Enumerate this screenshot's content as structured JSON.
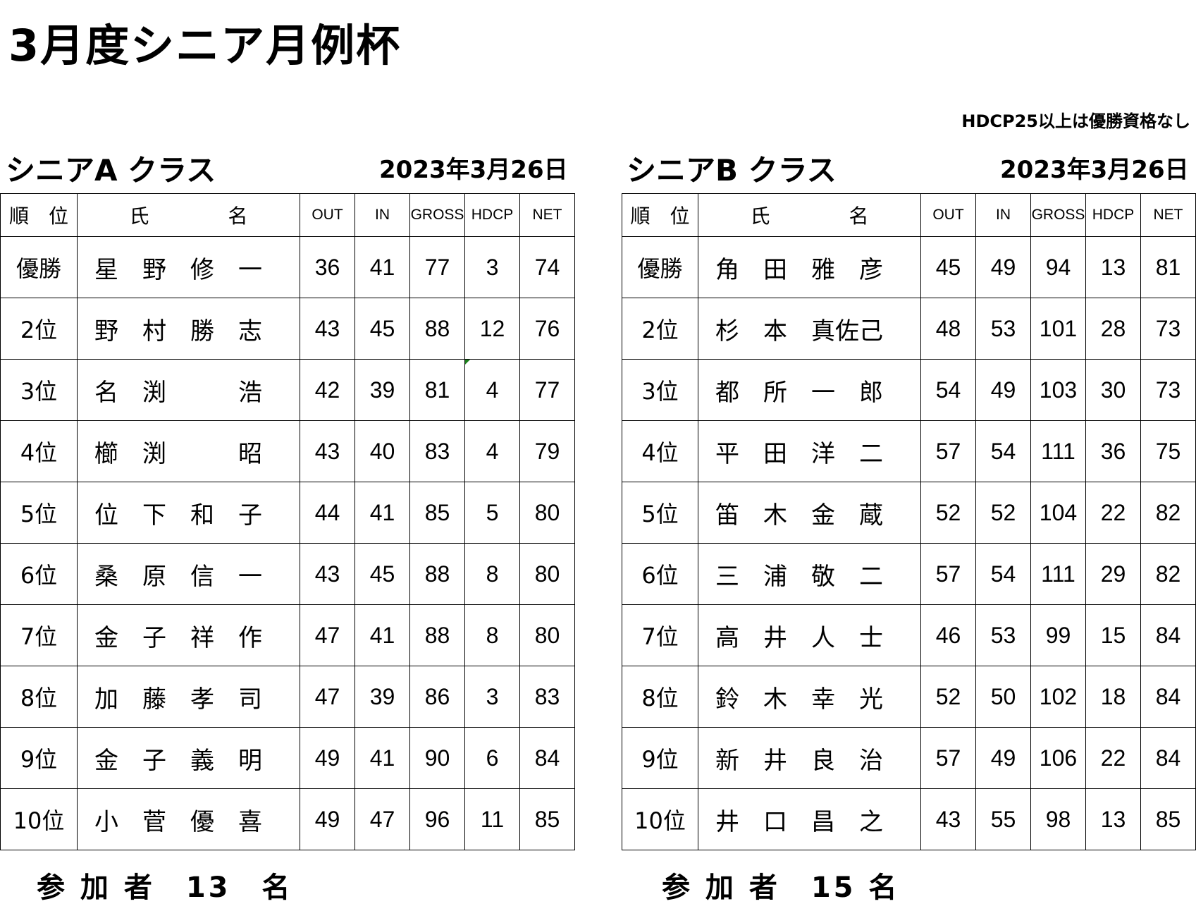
{
  "title": "3月度シニア月例杯",
  "note": "HDCP25以上は優勝資格なし",
  "headers": {
    "rank": "順　位",
    "name": "氏　　　　名",
    "out": "OUT",
    "in": "IN",
    "gross": "GROSS",
    "hdcp": "HDCP",
    "net": "NET"
  },
  "classA": {
    "title": "シニアA クラス",
    "date": "2023年3月26日",
    "participants": "参 加 者　13　名",
    "rows": [
      {
        "rank": "優勝",
        "name": "星　野　修　一",
        "out": "36",
        "in": "41",
        "gross": "77",
        "hdcp": "3",
        "net": "74"
      },
      {
        "rank": "2位",
        "name": "野　村　勝　志",
        "out": "43",
        "in": "45",
        "gross": "88",
        "hdcp": "12",
        "net": "76"
      },
      {
        "rank": "3位",
        "name": "名　渕　　　浩",
        "out": "42",
        "in": "39",
        "gross": "81",
        "hdcp": "4",
        "net": "77"
      },
      {
        "rank": "4位",
        "name": "櫛　渕　　　昭",
        "out": "43",
        "in": "40",
        "gross": "83",
        "hdcp": "4",
        "net": "79"
      },
      {
        "rank": "5位",
        "name": "位　下　和　子",
        "out": "44",
        "in": "41",
        "gross": "85",
        "hdcp": "5",
        "net": "80"
      },
      {
        "rank": "6位",
        "name": "桑　原　信　一",
        "out": "43",
        "in": "45",
        "gross": "88",
        "hdcp": "8",
        "net": "80"
      },
      {
        "rank": "7位",
        "name": "金　子　祥　作",
        "out": "47",
        "in": "41",
        "gross": "88",
        "hdcp": "8",
        "net": "80"
      },
      {
        "rank": "8位",
        "name": "加　藤　孝　司",
        "out": "47",
        "in": "39",
        "gross": "86",
        "hdcp": "3",
        "net": "83"
      },
      {
        "rank": "9位",
        "name": "金　子　義　明",
        "out": "49",
        "in": "41",
        "gross": "90",
        "hdcp": "6",
        "net": "84"
      },
      {
        "rank": "10位",
        "name": "小　菅　優　喜",
        "out": "49",
        "in": "47",
        "gross": "96",
        "hdcp": "11",
        "net": "85"
      }
    ]
  },
  "classB": {
    "title": "シニアB クラス",
    "date": "2023年3月26日",
    "participants": "参 加 者　15 名",
    "rows": [
      {
        "rank": "優勝",
        "name": "角　田　雅　彦",
        "out": "45",
        "in": "49",
        "gross": "94",
        "hdcp": "13",
        "net": "81"
      },
      {
        "rank": "2位",
        "name": "杉　本　真佐己",
        "out": "48",
        "in": "53",
        "gross": "101",
        "hdcp": "28",
        "net": "73"
      },
      {
        "rank": "3位",
        "name": "都　所　一　郎",
        "out": "54",
        "in": "49",
        "gross": "103",
        "hdcp": "30",
        "net": "73"
      },
      {
        "rank": "4位",
        "name": "平　田　洋　二",
        "out": "57",
        "in": "54",
        "gross": "111",
        "hdcp": "36",
        "net": "75"
      },
      {
        "rank": "5位",
        "name": "笛　木　金　蔵",
        "out": "52",
        "in": "52",
        "gross": "104",
        "hdcp": "22",
        "net": "82"
      },
      {
        "rank": "6位",
        "name": "三　浦　敬　二",
        "out": "57",
        "in": "54",
        "gross": "111",
        "hdcp": "29",
        "net": "82"
      },
      {
        "rank": "7位",
        "name": "高　井　人　士",
        "out": "46",
        "in": "53",
        "gross": "99",
        "hdcp": "15",
        "net": "84"
      },
      {
        "rank": "8位",
        "name": "鈴　木　幸　光",
        "out": "52",
        "in": "50",
        "gross": "102",
        "hdcp": "18",
        "net": "84"
      },
      {
        "rank": "9位",
        "name": "新　井　良　治",
        "out": "57",
        "in": "49",
        "gross": "106",
        "hdcp": "22",
        "net": "84"
      },
      {
        "rank": "10位",
        "name": "井　口　昌　之",
        "out": "43",
        "in": "55",
        "gross": "98",
        "hdcp": "13",
        "net": "85"
      }
    ]
  }
}
